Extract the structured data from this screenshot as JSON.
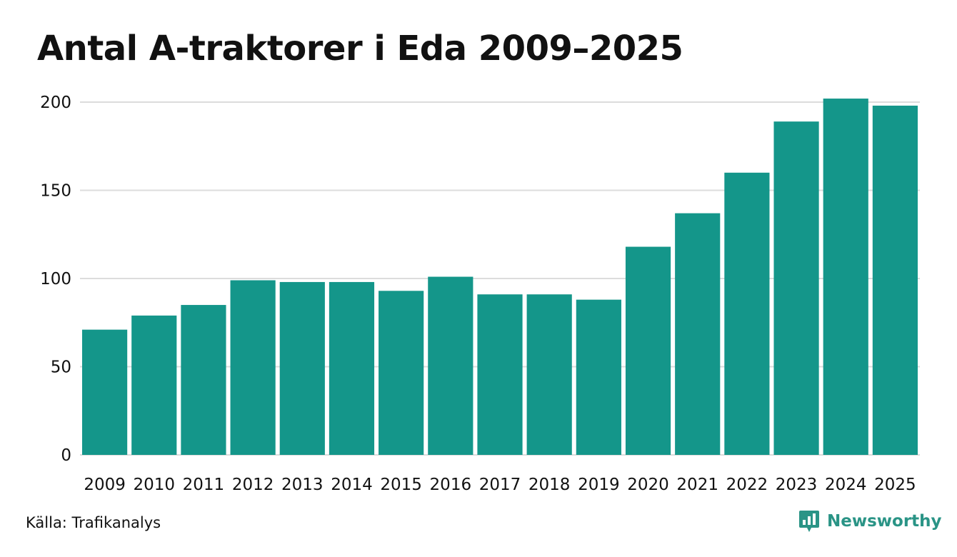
{
  "title": "Antal A-traktorer i Eda 2009–2025",
  "source": "Källa: Trafikanalys",
  "brand": {
    "name": "Newsworthy",
    "color": "#2a9486",
    "icon": "newsworthy-logo-icon"
  },
  "colors": {
    "bar": "#14968a",
    "grid": "#dcdcdc",
    "text": "#111111"
  },
  "chart_data": {
    "type": "bar",
    "title": "Antal A-traktorer i Eda 2009–2025",
    "xlabel": "",
    "ylabel": "",
    "categories": [
      "2009",
      "2010",
      "2011",
      "2012",
      "2013",
      "2014",
      "2015",
      "2016",
      "2017",
      "2018",
      "2019",
      "2020",
      "2021",
      "2022",
      "2023",
      "2024",
      "2025"
    ],
    "values": [
      71,
      79,
      85,
      99,
      98,
      98,
      93,
      101,
      91,
      91,
      88,
      118,
      137,
      160,
      189,
      202,
      198
    ],
    "ylim": [
      0,
      200
    ],
    "yticks": [
      0,
      50,
      100,
      150,
      200
    ],
    "grid": true,
    "legend": "none"
  }
}
